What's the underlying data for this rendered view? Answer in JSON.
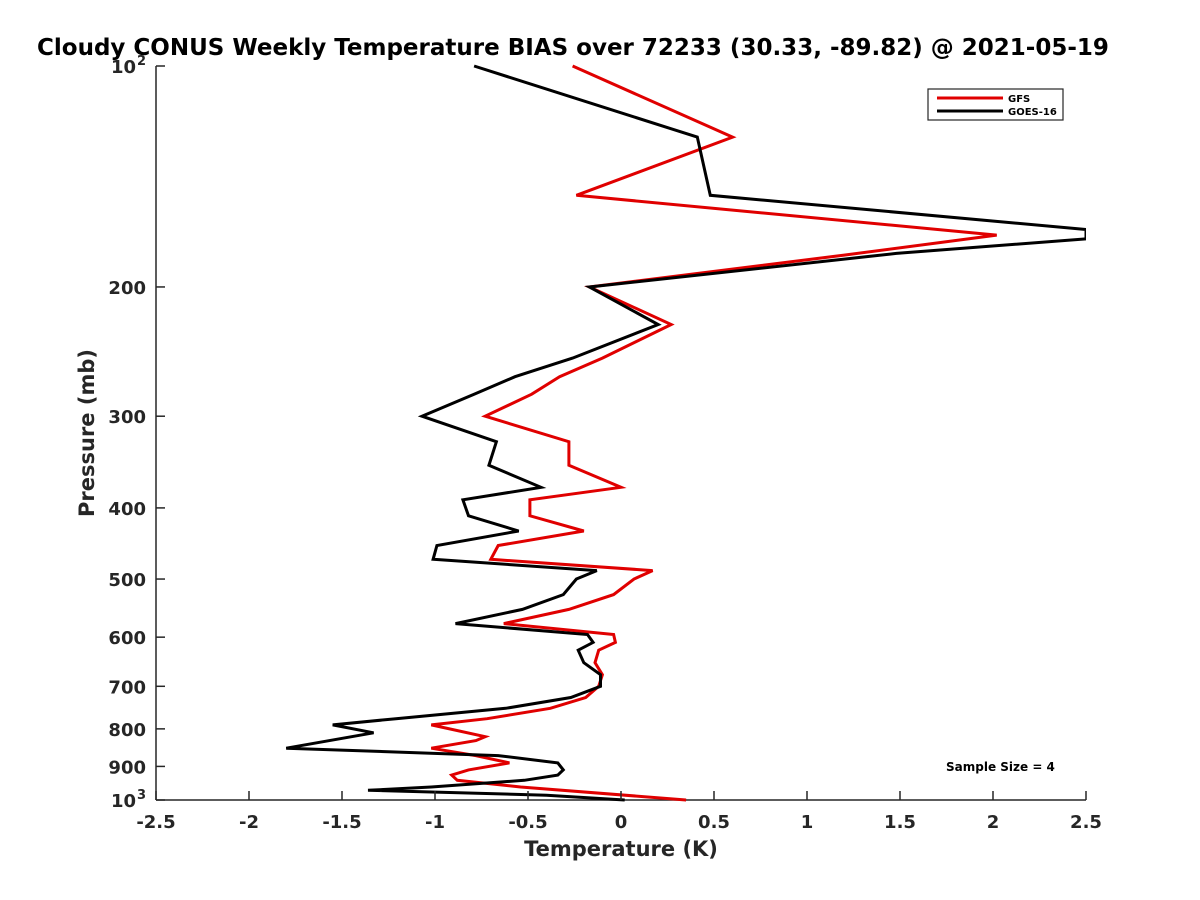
{
  "chart_data": {
    "type": "line",
    "title": "Cloudy CONUS Weekly Temperature BIAS over 72233 (30.33, -89.82) @ 2021-05-19",
    "xlabel": "Temperature (K)",
    "ylabel": "Pressure (mb)",
    "xlim": [
      -2.5,
      2.5
    ],
    "ylim": [
      100,
      1000
    ],
    "yscale": "log",
    "y_reversed": true,
    "grid": false,
    "legend_position": "top-right",
    "x_ticks": [
      {
        "value": -2.5,
        "label": "-2.5"
      },
      {
        "value": -2,
        "label": "-2"
      },
      {
        "value": -1.5,
        "label": "-1.5"
      },
      {
        "value": -1,
        "label": "-1"
      },
      {
        "value": -0.5,
        "label": "-0.5"
      },
      {
        "value": 0,
        "label": "0"
      },
      {
        "value": 0.5,
        "label": "0.5"
      },
      {
        "value": 1,
        "label": "1"
      },
      {
        "value": 1.5,
        "label": "1.5"
      },
      {
        "value": 2,
        "label": "2"
      },
      {
        "value": 2.5,
        "label": "2.5"
      }
    ],
    "y_ticks": [
      {
        "value": 100,
        "label": "10",
        "sup": "2"
      },
      {
        "value": 200,
        "label": "200"
      },
      {
        "value": 300,
        "label": "300"
      },
      {
        "value": 400,
        "label": "400"
      },
      {
        "value": 500,
        "label": "500"
      },
      {
        "value": 600,
        "label": "600"
      },
      {
        "value": 700,
        "label": "700"
      },
      {
        "value": 800,
        "label": "800"
      },
      {
        "value": 900,
        "label": "900"
      },
      {
        "value": 1000,
        "label": "10",
        "sup": "3"
      }
    ],
    "annotation": "Sample Size = 4",
    "series": [
      {
        "name": "GFS",
        "color": "#e00000",
        "points": [
          [
            -0.26,
            100
          ],
          [
            0.6,
            125
          ],
          [
            -0.24,
            150
          ],
          [
            2.02,
            170
          ],
          [
            1.2,
            181
          ],
          [
            -0.17,
            200
          ],
          [
            0.27,
            225
          ],
          [
            -0.1,
            250
          ],
          [
            -0.33,
            265
          ],
          [
            -0.48,
            280
          ],
          [
            -0.73,
            300
          ],
          [
            -0.28,
            325
          ],
          [
            -0.28,
            350
          ],
          [
            0,
            375
          ],
          [
            -0.49,
            390
          ],
          [
            -0.49,
            410
          ],
          [
            -0.2,
            430
          ],
          [
            -0.66,
            450
          ],
          [
            -0.7,
            470
          ],
          [
            0.17,
            487
          ],
          [
            0.07,
            500
          ],
          [
            -0.04,
            525
          ],
          [
            -0.28,
            550
          ],
          [
            -0.63,
            575
          ],
          [
            -0.04,
            595
          ],
          [
            -0.03,
            610
          ],
          [
            -0.12,
            625
          ],
          [
            -0.14,
            650
          ],
          [
            -0.1,
            675
          ],
          [
            -0.12,
            700
          ],
          [
            -0.19,
            725
          ],
          [
            -0.38,
            750
          ],
          [
            -0.72,
            775
          ],
          [
            -1.02,
            790
          ],
          [
            -0.73,
            820
          ],
          [
            -0.78,
            830
          ],
          [
            -1.02,
            850
          ],
          [
            -0.78,
            870
          ],
          [
            -0.6,
            890
          ],
          [
            -0.82,
            910
          ],
          [
            -0.91,
            925
          ],
          [
            -0.88,
            940
          ],
          [
            -0.54,
            960
          ],
          [
            0.35,
            1000
          ]
        ]
      },
      {
        "name": "GOES-16",
        "color": "#000000",
        "points": [
          [
            -0.79,
            100
          ],
          [
            0.41,
            125
          ],
          [
            0.48,
            150
          ],
          [
            2.5,
            167
          ],
          [
            2.5,
            172
          ],
          [
            1.48,
            180
          ],
          [
            -0.17,
            200
          ],
          [
            0.2,
            225
          ],
          [
            -0.26,
            250
          ],
          [
            -0.57,
            265
          ],
          [
            -0.79,
            280
          ],
          [
            -1.07,
            300
          ],
          [
            -0.67,
            325
          ],
          [
            -0.71,
            350
          ],
          [
            -0.43,
            375
          ],
          [
            -0.85,
            390
          ],
          [
            -0.82,
            410
          ],
          [
            -0.55,
            430
          ],
          [
            -0.99,
            450
          ],
          [
            -1.01,
            470
          ],
          [
            -0.13,
            487
          ],
          [
            -0.24,
            500
          ],
          [
            -0.31,
            525
          ],
          [
            -0.53,
            550
          ],
          [
            -0.89,
            575
          ],
          [
            -0.18,
            595
          ],
          [
            -0.15,
            610
          ],
          [
            -0.23,
            625
          ],
          [
            -0.2,
            650
          ],
          [
            -0.11,
            675
          ],
          [
            -0.11,
            700
          ],
          [
            -0.27,
            725
          ],
          [
            -0.62,
            750
          ],
          [
            -1.21,
            775
          ],
          [
            -1.55,
            790
          ],
          [
            -1.33,
            810
          ],
          [
            -1.8,
            850
          ],
          [
            -0.66,
            870
          ],
          [
            -0.34,
            890
          ],
          [
            -0.31,
            910
          ],
          [
            -0.34,
            925
          ],
          [
            -0.52,
            940
          ],
          [
            -1.02,
            960
          ],
          [
            -1.36,
            970
          ],
          [
            -0.4,
            985
          ],
          [
            0.02,
            1000
          ]
        ]
      }
    ]
  }
}
